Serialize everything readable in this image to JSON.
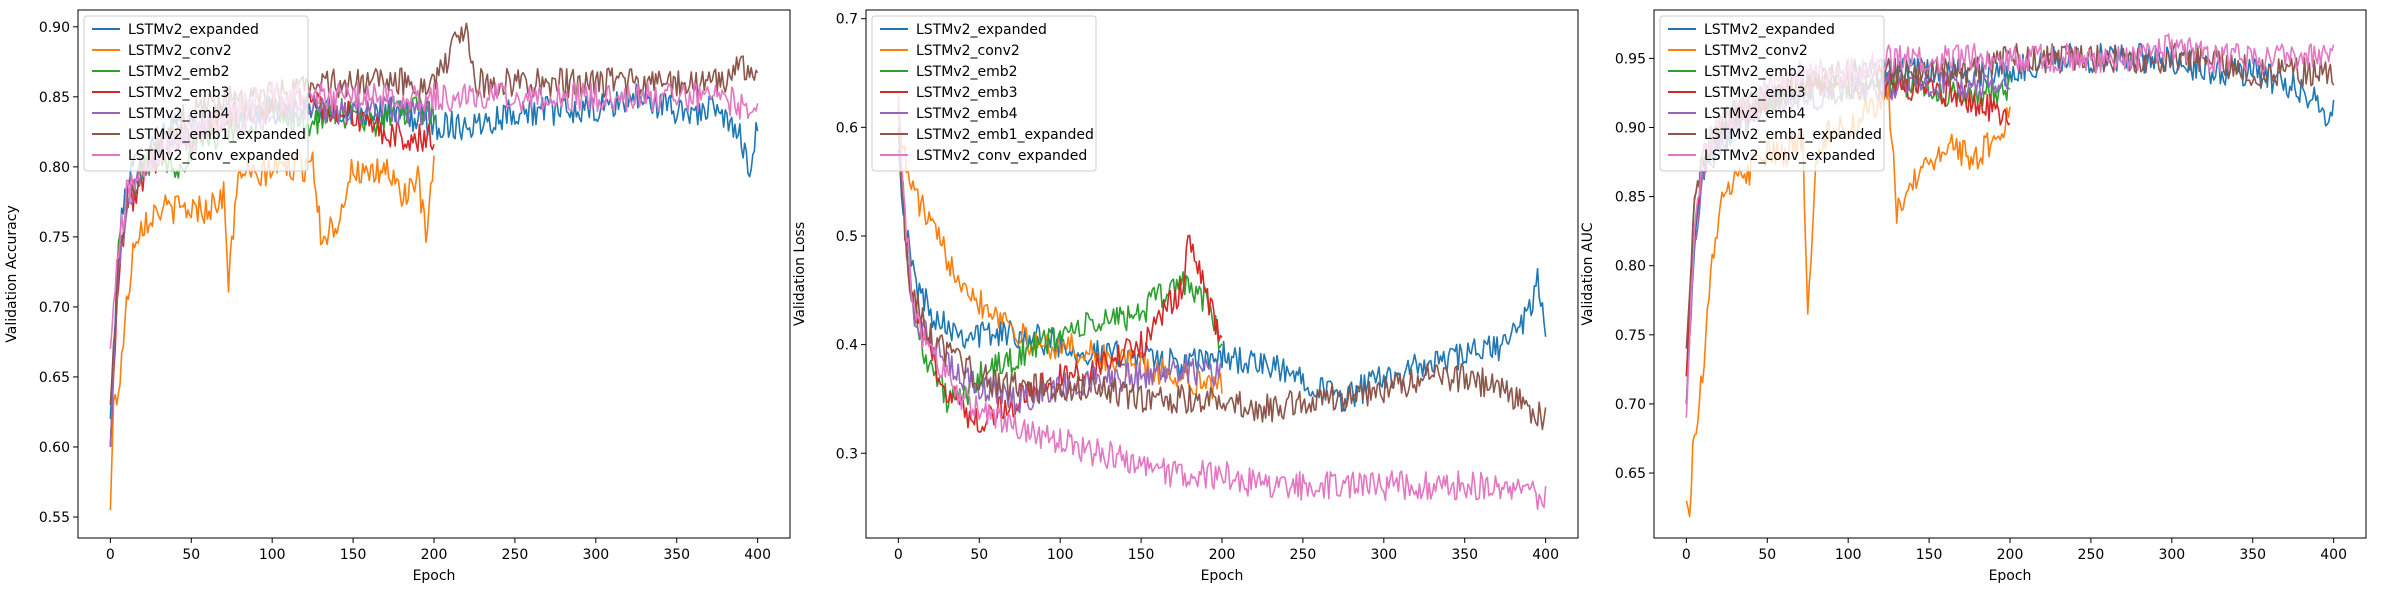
{
  "colors": {
    "LSTMv2_expanded": "#1f77b4",
    "LSTMv2_conv2": "#ff7f0e",
    "LSTMv2_emb2": "#2ca02c",
    "LSTMv2_emb3": "#d62728",
    "LSTMv2_emb4": "#9467bd",
    "LSTMv2_emb1_expanded": "#8c564b",
    "LSTMv2_conv_expanded": "#e377c2"
  },
  "chart_data": [
    {
      "type": "line",
      "xlabel": "Epoch",
      "ylabel": "Validation Accuracy",
      "xlim": [
        -20,
        420
      ],
      "ylim": [
        0.535,
        0.912
      ],
      "xticks": [
        "0",
        "50",
        "100",
        "150",
        "200",
        "250",
        "300",
        "350",
        "400"
      ],
      "yticks": [
        "0.55",
        "0.60",
        "0.65",
        "0.70",
        "0.75",
        "0.80",
        "0.85",
        "0.90"
      ],
      "legend_position": "upper-left",
      "grid": false,
      "series": [
        {
          "name": "LSTMv2_expanded",
          "color": "#1f77b4",
          "x": [
            0,
            5,
            10,
            20,
            30,
            40,
            50,
            75,
            100,
            125,
            150,
            175,
            200,
            225,
            250,
            275,
            300,
            325,
            350,
            375,
            390,
            395,
            400
          ],
          "y": [
            0.62,
            0.74,
            0.79,
            0.81,
            0.82,
            0.83,
            0.83,
            0.84,
            0.84,
            0.84,
            0.84,
            0.84,
            0.83,
            0.83,
            0.84,
            0.84,
            0.84,
            0.85,
            0.84,
            0.84,
            0.82,
            0.8,
            0.83
          ]
        },
        {
          "name": "LSTMv2_conv2",
          "color": "#ff7f0e",
          "x": [
            0,
            2,
            5,
            10,
            15,
            20,
            30,
            40,
            50,
            60,
            70,
            73,
            80,
            90,
            100,
            110,
            120,
            125,
            130,
            140,
            150,
            160,
            170,
            180,
            190,
            195,
            200
          ],
          "y": [
            0.555,
            0.63,
            0.64,
            0.7,
            0.75,
            0.76,
            0.77,
            0.77,
            0.77,
            0.77,
            0.78,
            0.72,
            0.8,
            0.79,
            0.8,
            0.8,
            0.8,
            0.81,
            0.75,
            0.76,
            0.8,
            0.79,
            0.8,
            0.78,
            0.79,
            0.75,
            0.8
          ]
        },
        {
          "name": "LSTMv2_emb2",
          "color": "#2ca02c",
          "x": [
            0,
            5,
            10,
            20,
            30,
            40,
            50,
            60,
            80,
            100,
            120,
            140,
            160,
            180,
            200
          ],
          "y": [
            0.6,
            0.74,
            0.77,
            0.8,
            0.81,
            0.8,
            0.81,
            0.82,
            0.83,
            0.84,
            0.83,
            0.84,
            0.83,
            0.84,
            0.84
          ]
        },
        {
          "name": "LSTMv2_emb3",
          "color": "#d62728",
          "x": [
            0,
            5,
            10,
            20,
            30,
            40,
            50,
            60,
            80,
            100,
            120,
            140,
            160,
            180,
            200
          ],
          "y": [
            0.6,
            0.72,
            0.77,
            0.79,
            0.81,
            0.82,
            0.82,
            0.83,
            0.84,
            0.84,
            0.85,
            0.84,
            0.83,
            0.82,
            0.82
          ]
        },
        {
          "name": "LSTMv2_emb4",
          "color": "#9467bd",
          "x": [
            0,
            5,
            10,
            20,
            30,
            40,
            50,
            60,
            80,
            100,
            120,
            140,
            160,
            180,
            200
          ],
          "y": [
            0.6,
            0.73,
            0.77,
            0.8,
            0.81,
            0.82,
            0.82,
            0.83,
            0.83,
            0.84,
            0.84,
            0.84,
            0.84,
            0.84,
            0.84
          ]
        },
        {
          "name": "LSTMv2_emb1_expanded",
          "color": "#8c564b",
          "x": [
            0,
            5,
            10,
            20,
            30,
            40,
            50,
            75,
            100,
            125,
            150,
            175,
            200,
            220,
            225,
            250,
            275,
            300,
            325,
            350,
            375,
            390,
            400
          ],
          "y": [
            0.63,
            0.73,
            0.78,
            0.8,
            0.82,
            0.83,
            0.84,
            0.85,
            0.85,
            0.86,
            0.86,
            0.86,
            0.86,
            0.9,
            0.86,
            0.86,
            0.86,
            0.86,
            0.86,
            0.86,
            0.86,
            0.87,
            0.86
          ]
        },
        {
          "name": "LSTMv2_conv_expanded",
          "color": "#e377c2",
          "x": [
            0,
            5,
            10,
            20,
            30,
            40,
            50,
            75,
            100,
            125,
            150,
            175,
            200,
            225,
            250,
            275,
            300,
            325,
            350,
            375,
            400
          ],
          "y": [
            0.67,
            0.74,
            0.78,
            0.8,
            0.81,
            0.82,
            0.83,
            0.84,
            0.85,
            0.85,
            0.85,
            0.85,
            0.85,
            0.85,
            0.85,
            0.85,
            0.85,
            0.85,
            0.85,
            0.85,
            0.84
          ]
        }
      ]
    },
    {
      "type": "line",
      "xlabel": "Epoch",
      "ylabel": "Validation Loss",
      "xlim": [
        -20,
        420
      ],
      "ylim": [
        0.222,
        0.708
      ],
      "xticks": [
        "0",
        "50",
        "100",
        "150",
        "200",
        "250",
        "300",
        "350",
        "400"
      ],
      "yticks": [
        "0.3",
        "0.4",
        "0.5",
        "0.6",
        "0.7"
      ],
      "legend_position": "upper-left",
      "grid": false,
      "series": [
        {
          "name": "LSTMv2_expanded",
          "color": "#1f77b4",
          "x": [
            0,
            5,
            10,
            20,
            30,
            40,
            50,
            75,
            100,
            125,
            150,
            175,
            200,
            225,
            250,
            275,
            300,
            325,
            350,
            375,
            390,
            395,
            400
          ],
          "y": [
            0.58,
            0.5,
            0.46,
            0.43,
            0.42,
            0.41,
            0.41,
            0.41,
            0.4,
            0.39,
            0.39,
            0.38,
            0.39,
            0.38,
            0.37,
            0.35,
            0.37,
            0.38,
            0.39,
            0.4,
            0.43,
            0.46,
            0.41
          ]
        },
        {
          "name": "LSTMv2_conv2",
          "color": "#ff7f0e",
          "x": [
            0,
            5,
            10,
            20,
            30,
            40,
            50,
            60,
            70,
            80,
            100,
            120,
            150,
            175,
            200
          ],
          "y": [
            0.62,
            0.56,
            0.54,
            0.51,
            0.48,
            0.46,
            0.44,
            0.43,
            0.42,
            0.4,
            0.4,
            0.39,
            0.38,
            0.37,
            0.36
          ]
        },
        {
          "name": "LSTMv2_emb2",
          "color": "#2ca02c",
          "x": [
            0,
            5,
            10,
            20,
            30,
            40,
            50,
            75,
            100,
            125,
            150,
            175,
            190,
            200
          ],
          "y": [
            0.62,
            0.49,
            0.42,
            0.38,
            0.35,
            0.35,
            0.37,
            0.39,
            0.41,
            0.42,
            0.43,
            0.46,
            0.44,
            0.4
          ]
        },
        {
          "name": "LSTMv2_emb3",
          "color": "#d62728",
          "x": [
            0,
            5,
            10,
            20,
            30,
            40,
            50,
            75,
            100,
            125,
            150,
            175,
            180,
            200
          ],
          "y": [
            0.62,
            0.5,
            0.43,
            0.39,
            0.36,
            0.34,
            0.33,
            0.35,
            0.37,
            0.38,
            0.4,
            0.45,
            0.5,
            0.4
          ]
        },
        {
          "name": "LSTMv2_emb4",
          "color": "#9467bd",
          "x": [
            0,
            5,
            10,
            20,
            30,
            40,
            50,
            75,
            100,
            125,
            150,
            175,
            200
          ],
          "y": [
            0.62,
            0.48,
            0.43,
            0.4,
            0.38,
            0.37,
            0.36,
            0.35,
            0.36,
            0.37,
            0.37,
            0.38,
            0.37
          ]
        },
        {
          "name": "LSTMv2_emb1_expanded",
          "color": "#8c564b",
          "x": [
            0,
            5,
            10,
            20,
            30,
            40,
            50,
            75,
            100,
            125,
            150,
            175,
            200,
            225,
            250,
            275,
            300,
            325,
            350,
            375,
            390,
            400
          ],
          "y": [
            0.6,
            0.48,
            0.44,
            0.41,
            0.39,
            0.38,
            0.37,
            0.36,
            0.36,
            0.36,
            0.35,
            0.35,
            0.35,
            0.34,
            0.35,
            0.35,
            0.36,
            0.37,
            0.37,
            0.36,
            0.34,
            0.33
          ]
        },
        {
          "name": "LSTMv2_conv_expanded",
          "color": "#e377c2",
          "x": [
            0,
            5,
            10,
            20,
            30,
            40,
            50,
            75,
            100,
            125,
            150,
            175,
            200,
            225,
            250,
            275,
            300,
            325,
            350,
            375,
            400
          ],
          "y": [
            0.63,
            0.5,
            0.43,
            0.39,
            0.37,
            0.35,
            0.34,
            0.32,
            0.31,
            0.3,
            0.29,
            0.28,
            0.28,
            0.27,
            0.27,
            0.27,
            0.27,
            0.27,
            0.27,
            0.27,
            0.26
          ]
        }
      ]
    },
    {
      "type": "line",
      "xlabel": "Epoch",
      "ylabel": "Validation AUC",
      "xlim": [
        -20,
        420
      ],
      "ylim": [
        0.603,
        0.985
      ],
      "xticks": [
        "0",
        "50",
        "100",
        "150",
        "200",
        "250",
        "300",
        "350",
        "400"
      ],
      "yticks": [
        "0.65",
        "0.70",
        "0.75",
        "0.80",
        "0.85",
        "0.90",
        "0.95"
      ],
      "legend_position": "upper-left",
      "grid": false,
      "series": [
        {
          "name": "LSTMv2_expanded",
          "color": "#1f77b4",
          "x": [
            0,
            5,
            10,
            20,
            30,
            40,
            50,
            75,
            100,
            125,
            150,
            175,
            200,
            225,
            250,
            275,
            300,
            325,
            350,
            375,
            390,
            395,
            400
          ],
          "y": [
            0.7,
            0.82,
            0.87,
            0.89,
            0.9,
            0.91,
            0.92,
            0.93,
            0.94,
            0.94,
            0.94,
            0.94,
            0.94,
            0.95,
            0.95,
            0.95,
            0.95,
            0.94,
            0.94,
            0.93,
            0.92,
            0.9,
            0.92
          ]
        },
        {
          "name": "LSTMv2_conv2",
          "color": "#ff7f0e",
          "x": [
            0,
            2,
            4,
            10,
            15,
            20,
            30,
            40,
            50,
            60,
            70,
            72,
            75,
            80,
            90,
            100,
            110,
            120,
            125,
            130,
            140,
            150,
            160,
            170,
            180,
            190,
            195,
            200
          ],
          "y": [
            0.63,
            0.62,
            0.67,
            0.72,
            0.79,
            0.84,
            0.86,
            0.87,
            0.88,
            0.88,
            0.89,
            0.89,
            0.765,
            0.88,
            0.9,
            0.9,
            0.91,
            0.92,
            0.92,
            0.84,
            0.86,
            0.87,
            0.89,
            0.88,
            0.88,
            0.89,
            0.9,
            0.91
          ]
        },
        {
          "name": "LSTMv2_emb2",
          "color": "#2ca02c",
          "x": [
            0,
            5,
            10,
            20,
            30,
            40,
            50,
            75,
            100,
            125,
            150,
            175,
            200
          ],
          "y": [
            0.72,
            0.84,
            0.88,
            0.9,
            0.91,
            0.92,
            0.92,
            0.93,
            0.93,
            0.93,
            0.93,
            0.92,
            0.93
          ]
        },
        {
          "name": "LSTMv2_emb3",
          "color": "#d62728",
          "x": [
            0,
            5,
            10,
            20,
            30,
            40,
            50,
            75,
            100,
            125,
            150,
            175,
            200
          ],
          "y": [
            0.72,
            0.83,
            0.87,
            0.9,
            0.91,
            0.91,
            0.92,
            0.93,
            0.93,
            0.93,
            0.93,
            0.92,
            0.91
          ]
        },
        {
          "name": "LSTMv2_emb4",
          "color": "#9467bd",
          "x": [
            0,
            5,
            10,
            20,
            30,
            40,
            50,
            75,
            100,
            125,
            150,
            175,
            200
          ],
          "y": [
            0.7,
            0.82,
            0.86,
            0.89,
            0.9,
            0.91,
            0.92,
            0.92,
            0.93,
            0.93,
            0.93,
            0.93,
            0.93
          ]
        },
        {
          "name": "LSTMv2_emb1_expanded",
          "color": "#8c564b",
          "x": [
            0,
            5,
            10,
            20,
            30,
            40,
            50,
            75,
            100,
            125,
            150,
            175,
            200,
            225,
            250,
            275,
            300,
            325,
            350,
            375,
            390,
            400
          ],
          "y": [
            0.74,
            0.84,
            0.88,
            0.9,
            0.91,
            0.92,
            0.92,
            0.93,
            0.94,
            0.94,
            0.94,
            0.94,
            0.95,
            0.95,
            0.95,
            0.95,
            0.95,
            0.95,
            0.94,
            0.94,
            0.94,
            0.94
          ]
        },
        {
          "name": "LSTMv2_conv_expanded",
          "color": "#e377c2",
          "x": [
            0,
            5,
            10,
            20,
            30,
            40,
            50,
            75,
            100,
            125,
            150,
            175,
            200,
            225,
            250,
            275,
            300,
            325,
            350,
            375,
            400
          ],
          "y": [
            0.69,
            0.83,
            0.88,
            0.9,
            0.91,
            0.92,
            0.93,
            0.94,
            0.94,
            0.95,
            0.95,
            0.95,
            0.95,
            0.95,
            0.95,
            0.95,
            0.96,
            0.95,
            0.95,
            0.95,
            0.95
          ]
        }
      ]
    }
  ]
}
